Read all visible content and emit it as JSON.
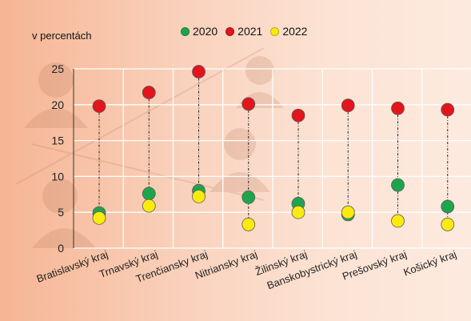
{
  "chart_data": {
    "type": "scatter",
    "title": "",
    "ylabel": "v percentách",
    "ylim": [
      0,
      25
    ],
    "yticks": [
      0,
      5,
      10,
      15,
      20,
      25
    ],
    "grid": true,
    "legend_position": "top-center",
    "categories": [
      "Bratislavský kraj",
      "Trnavský kraj",
      "Trenčiansky kraj",
      "Nitriansky kraj",
      "Žilinský kraj",
      "Banskobystrický kraj",
      "Prešovský kraj",
      "Košický kraj"
    ],
    "series": [
      {
        "name": "2020",
        "color": "#1ea54b",
        "values": [
          4.9,
          7.6,
          8.0,
          7.1,
          6.2,
          4.7,
          8.8,
          5.8
        ]
      },
      {
        "name": "2021",
        "color": "#e3141b",
        "values": [
          19.8,
          21.7,
          24.6,
          20.1,
          18.5,
          19.9,
          19.5,
          19.3
        ]
      },
      {
        "name": "2022",
        "color": "#fbea0e",
        "values": [
          4.2,
          5.9,
          7.2,
          3.3,
          5.0,
          5.0,
          3.8,
          3.3
        ]
      }
    ]
  }
}
